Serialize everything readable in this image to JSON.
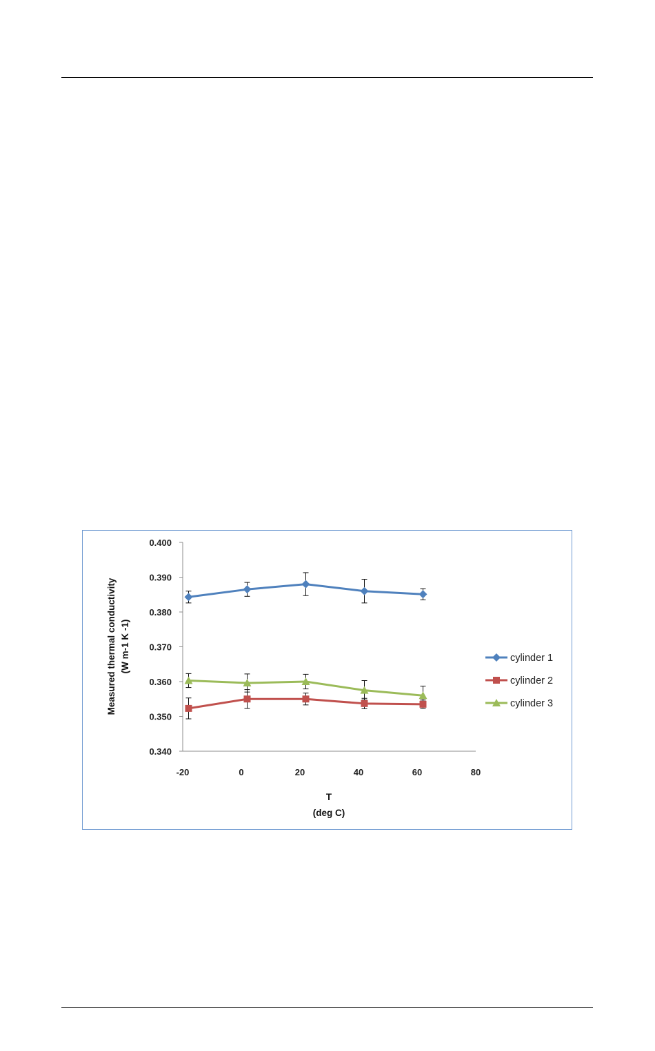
{
  "chart_data": {
    "type": "line",
    "ylabel_lines": [
      "Measured thermal conductivity",
      "(W m-1 K -1)"
    ],
    "xlabel_lines": [
      "T",
      "(deg C)"
    ],
    "xlim": [
      -20,
      80
    ],
    "ylim": [
      0.34,
      0.4
    ],
    "x_ticks": [
      -20,
      0,
      20,
      40,
      60,
      80
    ],
    "x_tick_labels": [
      "-20",
      "0",
      "20",
      "40",
      "60",
      "80"
    ],
    "y_ticks": [
      0.34,
      0.35,
      0.36,
      0.37,
      0.38,
      0.39,
      0.4
    ],
    "y_tick_labels": [
      "0.340",
      "0.350",
      "0.360",
      "0.370",
      "0.380",
      "0.390",
      "0.400"
    ],
    "grid": false,
    "legend_position": "right",
    "series": [
      {
        "name": "cylinder 1",
        "color": "#4f81bd",
        "marker": "diamond",
        "x": [
          -18,
          2,
          22,
          42,
          62
        ],
        "y": [
          0.3843,
          0.3865,
          0.388,
          0.386,
          0.3851
        ],
        "err": [
          0.0017,
          0.002,
          0.0033,
          0.0034,
          0.0016
        ]
      },
      {
        "name": "cylinder 2",
        "color": "#c0504d",
        "marker": "square",
        "x": [
          -18,
          2,
          22,
          42,
          62
        ],
        "y": [
          0.3523,
          0.355,
          0.355,
          0.3537,
          0.3535
        ],
        "err": [
          0.003,
          0.0027,
          0.0017,
          0.0015,
          0.0012
        ]
      },
      {
        "name": "cylinder 3",
        "color": "#9bbb59",
        "marker": "triangle",
        "x": [
          -18,
          2,
          22,
          42,
          62
        ],
        "y": [
          0.3603,
          0.3596,
          0.36,
          0.3575,
          0.356
        ],
        "err": [
          0.002,
          0.0026,
          0.0021,
          0.0028,
          0.0027
        ]
      }
    ]
  }
}
